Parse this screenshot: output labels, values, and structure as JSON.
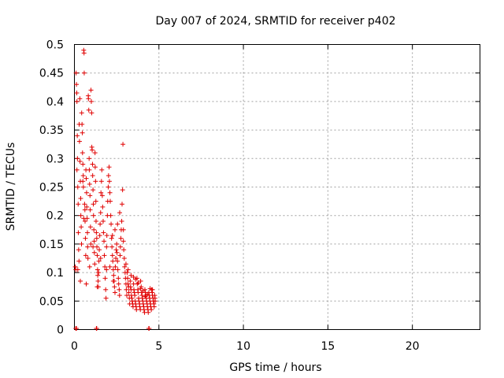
{
  "chart_data": {
    "type": "scatter",
    "title": "Day 007 of 2024, SRMTID for receiver p402",
    "xlabel": "GPS time / hours",
    "ylabel": "SRMTID / TECUs",
    "xlim": [
      0,
      24
    ],
    "ylim": [
      0,
      0.5
    ],
    "xticks": [
      0,
      5,
      10,
      15,
      20
    ],
    "xtick_labels": [
      "0",
      "5",
      "10",
      "15",
      "20"
    ],
    "yticks": [
      0,
      0.05,
      0.1,
      0.15,
      0.2,
      0.25,
      0.3,
      0.35,
      0.4,
      0.45,
      0.5
    ],
    "ytick_labels": [
      "0",
      "0.05",
      "0.1",
      "0.15",
      "0.2",
      "0.25",
      "0.3",
      "0.35",
      "0.4",
      "0.45",
      "0.5"
    ],
    "grid": true,
    "marker": "+",
    "color": "#e00000",
    "series": [
      {
        "name": "SRMTID",
        "points": [
          [
            0.05,
            0.11
          ],
          [
            0.08,
            0.105
          ],
          [
            0.1,
            0.45
          ],
          [
            0.12,
            0.43
          ],
          [
            0.14,
            0.415
          ],
          [
            0.15,
            0.4
          ],
          [
            0.17,
            0.34
          ],
          [
            0.18,
            0.3
          ],
          [
            0.2,
            0.25
          ],
          [
            0.22,
            0.22
          ],
          [
            0.23,
            0.17
          ],
          [
            0.25,
            0.14
          ],
          [
            0.27,
            0.12
          ],
          [
            0.28,
            0.36
          ],
          [
            0.3,
            0.33
          ],
          [
            0.32,
            0.405
          ],
          [
            0.33,
            0.295
          ],
          [
            0.35,
            0.26
          ],
          [
            0.37,
            0.23
          ],
          [
            0.38,
            0.2
          ],
          [
            0.4,
            0.18
          ],
          [
            0.42,
            0.15
          ],
          [
            0.43,
            0.38
          ],
          [
            0.45,
            0.36
          ],
          [
            0.47,
            0.345
          ],
          [
            0.48,
            0.31
          ],
          [
            0.5,
            0.29
          ],
          [
            0.52,
            0.27
          ],
          [
            0.53,
            0.25
          ],
          [
            0.55,
            0.49
          ],
          [
            0.57,
            0.485
          ],
          [
            0.58,
            0.45
          ],
          [
            0.6,
            0.22
          ],
          [
            0.62,
            0.21
          ],
          [
            0.63,
            0.19
          ],
          [
            0.65,
            0.16
          ],
          [
            0.67,
            0.13
          ],
          [
            0.68,
            0.28
          ],
          [
            0.7,
            0.265
          ],
          [
            0.72,
            0.24
          ],
          [
            0.73,
            0.215
          ],
          [
            0.75,
            0.195
          ],
          [
            0.77,
            0.17
          ],
          [
            0.78,
            0.145
          ],
          [
            0.8,
            0.125
          ],
          [
            0.82,
            0.41
          ],
          [
            0.83,
            0.405
          ],
          [
            0.85,
            0.385
          ],
          [
            0.87,
            0.3
          ],
          [
            0.88,
            0.28
          ],
          [
            0.9,
            0.255
          ],
          [
            0.92,
            0.235
          ],
          [
            0.93,
            0.21
          ],
          [
            0.95,
            0.18
          ],
          [
            0.97,
            0.15
          ],
          [
            0.98,
            0.42
          ],
          [
            1.0,
            0.4
          ],
          [
            1.02,
            0.38
          ],
          [
            1.03,
            0.32
          ],
          [
            1.05,
            0.315
          ],
          [
            1.07,
            0.29
          ],
          [
            1.08,
            0.27
          ],
          [
            1.1,
            0.245
          ],
          [
            1.12,
            0.22
          ],
          [
            1.13,
            0.2
          ],
          [
            1.15,
            0.175
          ],
          [
            1.17,
            0.155
          ],
          [
            1.18,
            0.135
          ],
          [
            1.2,
            0.115
          ],
          [
            1.22,
            0.31
          ],
          [
            1.23,
            0.285
          ],
          [
            1.25,
            0.26
          ],
          [
            1.27,
            0.225
          ],
          [
            1.28,
            0.19
          ],
          [
            1.3,
            0.17
          ],
          [
            1.32,
            0.16
          ],
          [
            1.33,
            0.145
          ],
          [
            1.35,
            0.13
          ],
          [
            1.37,
            0.105
          ],
          [
            1.38,
            0.095
          ],
          [
            1.4,
            0.085
          ],
          [
            1.42,
            0.075
          ],
          [
            1.43,
            0.1
          ],
          [
            1.45,
            0.12
          ],
          [
            1.47,
            0.14
          ],
          [
            1.5,
            0.165
          ],
          [
            1.52,
            0.185
          ],
          [
            1.55,
            0.205
          ],
          [
            1.57,
            0.24
          ],
          [
            1.6,
            0.26
          ],
          [
            1.62,
            0.28
          ],
          [
            1.65,
            0.235
          ],
          [
            1.67,
            0.215
          ],
          [
            1.7,
            0.19
          ],
          [
            1.72,
            0.17
          ],
          [
            1.75,
            0.155
          ],
          [
            1.77,
            0.13
          ],
          [
            1.8,
            0.11
          ],
          [
            1.82,
            0.09
          ],
          [
            1.85,
            0.07
          ],
          [
            1.87,
            0.055
          ],
          [
            1.9,
            0.145
          ],
          [
            1.92,
            0.165
          ],
          [
            1.95,
            0.2
          ],
          [
            1.97,
            0.225
          ],
          [
            2.0,
            0.25
          ],
          [
            2.02,
            0.27
          ],
          [
            2.05,
            0.285
          ],
          [
            2.07,
            0.26
          ],
          [
            2.1,
            0.24
          ],
          [
            2.12,
            0.225
          ],
          [
            2.15,
            0.2
          ],
          [
            2.17,
            0.185
          ],
          [
            2.2,
            0.16
          ],
          [
            2.22,
            0.145
          ],
          [
            2.25,
            0.13
          ],
          [
            2.27,
            0.12
          ],
          [
            2.3,
            0.105
          ],
          [
            2.32,
            0.095
          ],
          [
            2.35,
            0.085
          ],
          [
            2.37,
            0.075
          ],
          [
            2.4,
            0.065
          ],
          [
            2.42,
            0.11
          ],
          [
            2.45,
            0.125
          ],
          [
            2.47,
            0.14
          ],
          [
            2.5,
            0.15
          ],
          [
            2.52,
            0.135
          ],
          [
            2.55,
            0.12
          ],
          [
            2.57,
            0.105
          ],
          [
            2.6,
            0.09
          ],
          [
            2.62,
            0.08
          ],
          [
            2.65,
            0.07
          ],
          [
            2.67,
            0.06
          ],
          [
            2.7,
            0.13
          ],
          [
            2.72,
            0.145
          ],
          [
            2.75,
            0.16
          ],
          [
            2.77,
            0.175
          ],
          [
            2.8,
            0.19
          ],
          [
            2.82,
            0.22
          ],
          [
            2.85,
            0.245
          ],
          [
            2.87,
            0.325
          ],
          [
            2.9,
            0.155
          ],
          [
            2.92,
            0.14
          ],
          [
            2.95,
            0.125
          ],
          [
            2.97,
            0.11
          ],
          [
            3.0,
            0.1
          ],
          [
            3.02,
            0.09
          ],
          [
            3.05,
            0.08
          ],
          [
            3.07,
            0.07
          ],
          [
            3.1,
            0.06
          ],
          [
            3.12,
            0.1
          ],
          [
            3.15,
            0.09
          ],
          [
            3.17,
            0.08
          ],
          [
            3.2,
            0.075
          ],
          [
            3.22,
            0.065
          ],
          [
            3.25,
            0.055
          ],
          [
            3.27,
            0.045
          ],
          [
            3.3,
            0.085
          ],
          [
            3.32,
            0.075
          ],
          [
            3.35,
            0.07
          ],
          [
            3.37,
            0.06
          ],
          [
            3.4,
            0.055
          ],
          [
            3.42,
            0.05
          ],
          [
            3.45,
            0.045
          ],
          [
            3.47,
            0.04
          ],
          [
            3.5,
            0.08
          ],
          [
            3.52,
            0.07
          ],
          [
            3.55,
            0.065
          ],
          [
            3.57,
            0.06
          ],
          [
            3.6,
            0.05
          ],
          [
            3.62,
            0.045
          ],
          [
            3.65,
            0.04
          ],
          [
            3.67,
            0.035
          ],
          [
            3.7,
            0.09
          ],
          [
            3.72,
            0.08
          ],
          [
            3.75,
            0.07
          ],
          [
            3.77,
            0.065
          ],
          [
            3.8,
            0.055
          ],
          [
            3.82,
            0.05
          ],
          [
            3.85,
            0.045
          ],
          [
            3.87,
            0.04
          ],
          [
            3.9,
            0.035
          ],
          [
            3.92,
            0.085
          ],
          [
            3.95,
            0.075
          ],
          [
            3.97,
            0.065
          ],
          [
            4.0,
            0.06
          ],
          [
            4.02,
            0.055
          ],
          [
            4.05,
            0.05
          ],
          [
            4.07,
            0.045
          ],
          [
            4.1,
            0.04
          ],
          [
            4.12,
            0.035
          ],
          [
            4.15,
            0.03
          ],
          [
            4.17,
            0.07
          ],
          [
            4.2,
            0.065
          ],
          [
            4.22,
            0.06
          ],
          [
            4.25,
            0.055
          ],
          [
            4.27,
            0.05
          ],
          [
            4.3,
            0.045
          ],
          [
            4.32,
            0.04
          ],
          [
            4.35,
            0.035
          ],
          [
            4.37,
            0.03
          ],
          [
            4.4,
            0.065
          ],
          [
            4.42,
            0.06
          ],
          [
            4.45,
            0.055
          ],
          [
            4.47,
            0.05
          ],
          [
            4.5,
            0.045
          ],
          [
            4.52,
            0.04
          ],
          [
            4.55,
            0.035
          ],
          [
            4.57,
            0.07
          ],
          [
            4.6,
            0.065
          ],
          [
            4.62,
            0.06
          ],
          [
            4.65,
            0.055
          ],
          [
            4.67,
            0.05
          ],
          [
            4.7,
            0.045
          ],
          [
            4.72,
            0.04
          ],
          [
            4.75,
            0.06
          ],
          [
            4.77,
            0.055
          ],
          [
            4.78,
            0.05
          ],
          [
            2.55,
            0.185
          ],
          [
            2.68,
            0.205
          ],
          [
            2.9,
            0.175
          ],
          [
            3.05,
            0.115
          ],
          [
            3.18,
            0.105
          ],
          [
            3.35,
            0.095
          ],
          [
            3.5,
            0.092
          ],
          [
            3.62,
            0.088
          ],
          [
            3.78,
            0.082
          ],
          [
            3.92,
            0.072
          ],
          [
            4.05,
            0.068
          ],
          [
            4.18,
            0.058
          ],
          [
            4.32,
            0.062
          ],
          [
            4.48,
            0.072
          ],
          [
            4.62,
            0.07
          ],
          [
            2.25,
            0.165
          ],
          [
            2.4,
            0.175
          ],
          [
            1.55,
            0.125
          ],
          [
            1.35,
            0.075
          ],
          [
            1.1,
            0.145
          ],
          [
            0.9,
            0.11
          ],
          [
            0.7,
            0.08
          ],
          [
            0.55,
            0.195
          ],
          [
            0.35,
            0.085
          ],
          [
            0.2,
            0.105
          ],
          [
            0.15,
            0.28
          ],
          [
            0.5,
            0.26
          ],
          [
            1.9,
            0.105
          ],
          [
            2.1,
            0.11
          ],
          [
            2.3,
            0.085
          ],
          [
            0.08,
            0.002
          ],
          [
            0.12,
            0.002
          ],
          [
            1.3,
            0.002
          ],
          [
            1.32,
            0.002
          ],
          [
            4.4,
            0.002
          ],
          [
            4.42,
            0.002
          ]
        ]
      }
    ]
  }
}
